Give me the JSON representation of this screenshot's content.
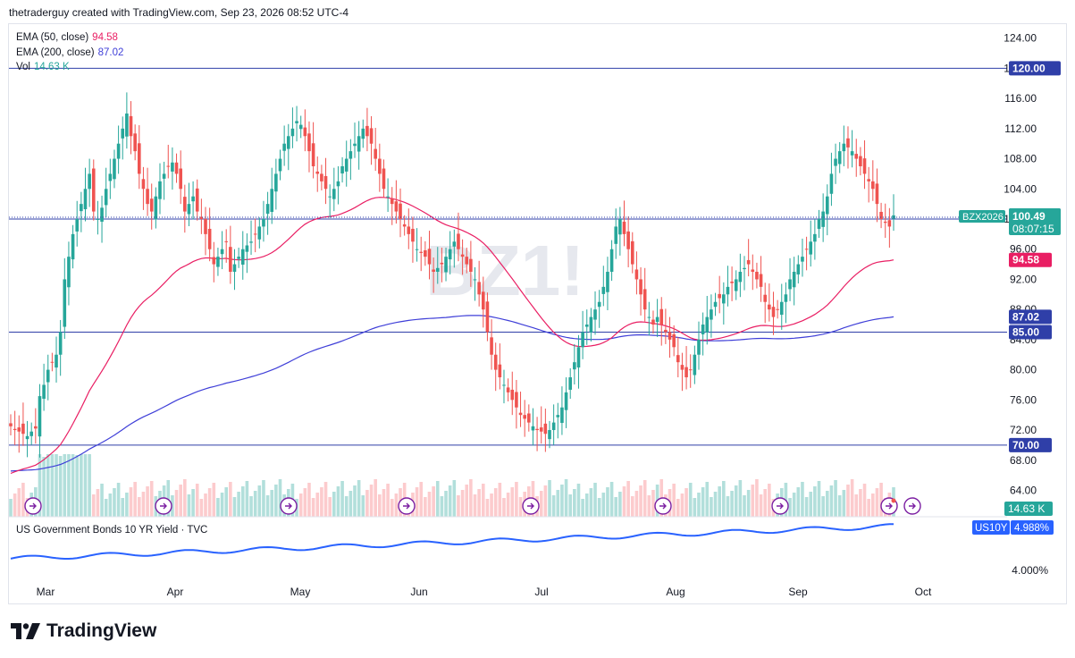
{
  "header": {
    "text": "thetraderguy created with TradingView.com, Sep 23, 2026 08:52 UTC-4"
  },
  "legends": {
    "ema50": {
      "label": "EMA (50, close)",
      "value": "94.58",
      "color": "#e91e63"
    },
    "ema200": {
      "label": "EMA (200, close)",
      "value": "87.02",
      "color": "#3f3fd8"
    },
    "vol": {
      "label": "Vol",
      "value": "14.63 K",
      "color": "#26a69a"
    }
  },
  "watermark": "BZ1!",
  "sub_pane": {
    "title": "US Government Bonds 10 YR Yield · TVC",
    "symbol": "US10Y",
    "value": "4.988%",
    "tick": "4.000%"
  },
  "price_badges": {
    "symbol": "BZX2026",
    "last": "100.49",
    "countdown": "08:07:15",
    "h_120": "120.00",
    "h_100": "100.00",
    "ema50": "94.58",
    "ema200": "87.02",
    "h_85": "85.00",
    "h_70": "70.00",
    "vol": "14.63 K"
  },
  "brand": {
    "name": "TradingView"
  },
  "colors": {
    "up": "#26a69a",
    "down": "#ef5350",
    "ema50": "#e91e63",
    "ema200": "#3f3fd8",
    "hline": "#2f3fa8",
    "yield": "#2962ff"
  },
  "chart_data": {
    "type": "candlestick",
    "y_ticks": [
      "124.00",
      "120.00",
      "116.00",
      "112.00",
      "108.00",
      "104.00",
      "100.00",
      "96.00",
      "92.00",
      "88.00",
      "84.00",
      "80.00",
      "76.00",
      "72.00",
      "68.00",
      "64.00"
    ],
    "x_labels": [
      "Mar",
      "Apr",
      "May",
      "Jun",
      "Jul",
      "Aug",
      "Sep",
      "Oct"
    ],
    "horizontal_levels": [
      120,
      100,
      85,
      70
    ],
    "ema50_last": 94.58,
    "ema200_last": 87.02,
    "last_price": 100.49,
    "volume_last": "14.63 K",
    "close_path": [
      72.5,
      72,
      71.8,
      71.5,
      71.2,
      71.8,
      72.2,
      76.5,
      78,
      80,
      81,
      82,
      85,
      92,
      95,
      98,
      100,
      102,
      104,
      106,
      101,
      100,
      101.5,
      104,
      106,
      108,
      110,
      112,
      114,
      111,
      109,
      106,
      104,
      102,
      101,
      103,
      105,
      106,
      107,
      107.5,
      106,
      104,
      101,
      102,
      103,
      101,
      100,
      98,
      96,
      94,
      95,
      96,
      97,
      93,
      94,
      95,
      96,
      96.5,
      97,
      98,
      99,
      100,
      102,
      104,
      106,
      108,
      110,
      111,
      112,
      113,
      112.5,
      111,
      109,
      107,
      106,
      105,
      104,
      103,
      104,
      105,
      107,
      108,
      109,
      110,
      111,
      112,
      111,
      110,
      108,
      106,
      104,
      103,
      102,
      101,
      100,
      99,
      98,
      97,
      96,
      95.5,
      95,
      94,
      93,
      93.5,
      94,
      95,
      96,
      97,
      96,
      95,
      94,
      93,
      92,
      90,
      88,
      85,
      82,
      80,
      79,
      78,
      77,
      76,
      75,
      74,
      73.5,
      73,
      72.5,
      72,
      71.8,
      71.5,
      72,
      73,
      74,
      75,
      77,
      79,
      81,
      83,
      85,
      86,
      87,
      88,
      89,
      91,
      93,
      96,
      99,
      100,
      98,
      96,
      94,
      92,
      90,
      88,
      87,
      86,
      87,
      86,
      85,
      84,
      83,
      81,
      80,
      79,
      80,
      82,
      84,
      86,
      87,
      88,
      89,
      89.5,
      90,
      91,
      91.5,
      92,
      93,
      93.5,
      94,
      93,
      92,
      91,
      89,
      88,
      87,
      88,
      89,
      90,
      92,
      93,
      94,
      95,
      96,
      97,
      98,
      100,
      101,
      103,
      106,
      108,
      109,
      110,
      109.5,
      109,
      108,
      107,
      106,
      105,
      104,
      102,
      100,
      99.5,
      99,
      100.49
    ],
    "yield_range": [
      4.0,
      5.0
    ],
    "yield_last": 4.988,
    "volume_shape": "rises sharply in early March, moderate thereafter",
    "events_icons": 11
  }
}
